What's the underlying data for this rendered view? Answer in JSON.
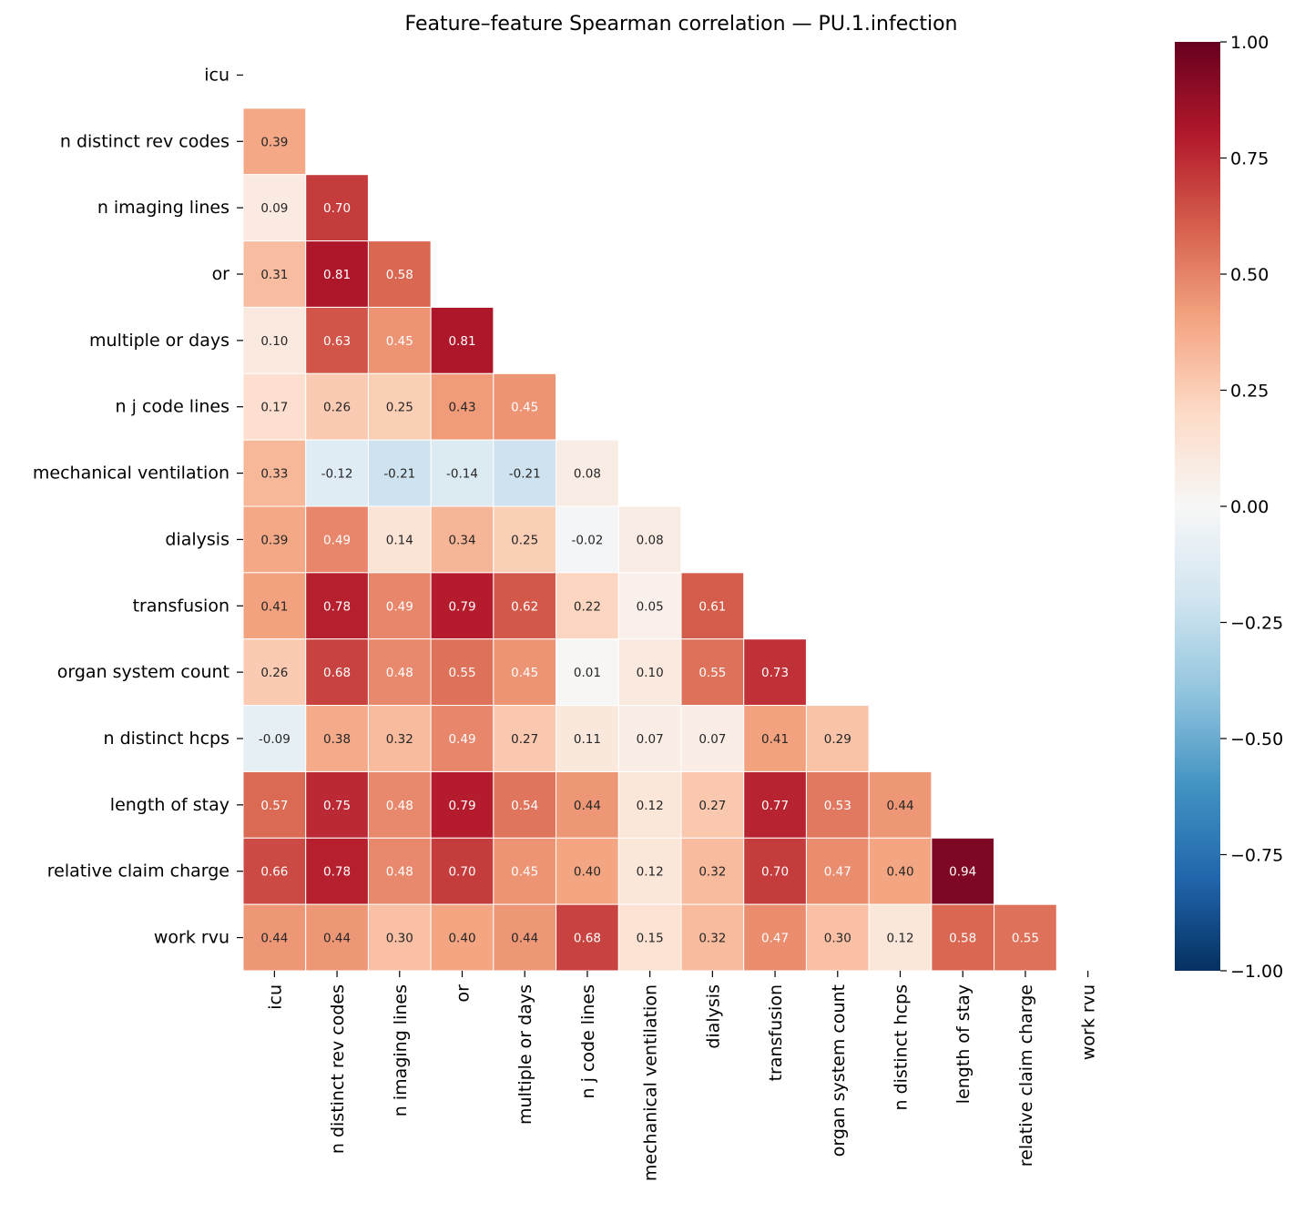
{
  "chart_data": {
    "type": "heatmap",
    "title": "Feature–feature Spearman correlation — PU.1.infection",
    "labels": [
      "icu",
      "n distinct rev codes",
      "n imaging lines",
      "or",
      "multiple or days",
      "n j code lines",
      "mechanical ventilation",
      "dialysis",
      "transfusion",
      "organ system count",
      "n distinct hcps",
      "length of stay",
      "relative claim charge",
      "work rvu"
    ],
    "mask": "upper triangle including diagonal",
    "lower_triangle": [
      [],
      [
        0.39
      ],
      [
        0.09,
        0.7
      ],
      [
        0.31,
        0.81,
        0.58
      ],
      [
        0.1,
        0.63,
        0.45,
        0.81
      ],
      [
        0.17,
        0.26,
        0.25,
        0.43,
        0.45
      ],
      [
        0.33,
        -0.12,
        -0.21,
        -0.14,
        -0.21,
        0.08
      ],
      [
        0.39,
        0.49,
        0.14,
        0.34,
        0.25,
        -0.02,
        0.08
      ],
      [
        0.41,
        0.78,
        0.49,
        0.79,
        0.62,
        0.22,
        0.05,
        0.61
      ],
      [
        0.26,
        0.68,
        0.48,
        0.55,
        0.45,
        0.01,
        0.1,
        0.55,
        0.73
      ],
      [
        -0.09,
        0.38,
        0.32,
        0.49,
        0.27,
        0.11,
        0.07,
        0.07,
        0.41,
        0.29
      ],
      [
        0.57,
        0.75,
        0.48,
        0.79,
        0.54,
        0.44,
        0.12,
        0.27,
        0.77,
        0.53,
        0.44
      ],
      [
        0.66,
        0.78,
        0.48,
        0.7,
        0.45,
        0.4,
        0.12,
        0.32,
        0.7,
        0.47,
        0.4,
        0.94
      ],
      [
        0.44,
        0.44,
        0.3,
        0.4,
        0.44,
        0.68,
        0.15,
        0.32,
        0.47,
        0.3,
        0.12,
        0.58,
        0.55
      ]
    ],
    "colormap": "RdBu_r",
    "vmin": -1,
    "vmax": 1,
    "colorbar_ticks": [
      "1.00",
      "0.75",
      "0.50",
      "0.25",
      "0.00",
      "−0.25",
      "−0.50",
      "−0.75",
      "−1.00"
    ],
    "colorbar_values": [
      1,
      0.75,
      0.5,
      0.25,
      0,
      -0.25,
      -0.5,
      -0.75,
      -1
    ],
    "annotation_format": "0.00"
  }
}
